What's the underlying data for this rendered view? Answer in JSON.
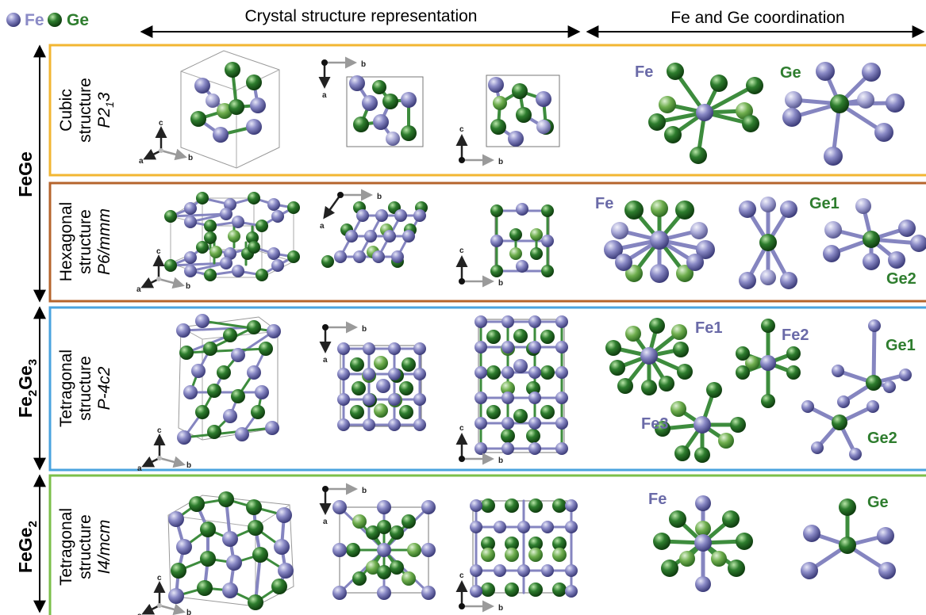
{
  "legend": {
    "fe": {
      "label": "Fe",
      "color": "#8a8ac6"
    },
    "ge": {
      "label": "Ge",
      "color": "#2e7d2e"
    }
  },
  "headers": {
    "crystal": "Crystal structure representation",
    "coordination": "Fe and Ge coordination"
  },
  "compounds": {
    "fege": {
      "formula": "FeGe"
    },
    "fe2ge3": {
      "base_fe": "Fe",
      "sub_fe": "2",
      "base_ge": "Ge",
      "sub_ge": "3"
    },
    "fege2": {
      "base": "FeGe",
      "sub": "2"
    }
  },
  "colors": {
    "cubic_border": "#f2b632",
    "hexagonal_border": "#b5642c",
    "tetragonal1_border": "#4aa3df",
    "tetragonal2_border": "#7bbf4a",
    "fe_atom": "#8a8ac6",
    "ge_atom": "#2e7d2e",
    "ge_light": "#6fae4e",
    "bond_fe": "#8585c0",
    "bond_ge": "#3d8c3d"
  },
  "rows": [
    {
      "id": "cubic",
      "struct_line1": "Cubic",
      "struct_line2": "structure",
      "space_group": "P2",
      "space_group_sub": "1",
      "space_group_tail": "3",
      "axes": {
        "a": "a",
        "b": "b",
        "c": "c"
      },
      "coord_labels": [
        "Fe",
        "Ge"
      ]
    },
    {
      "id": "hexagonal",
      "struct_line1": "Hexagonal",
      "struct_line2": "structure",
      "space_group": "P6/mmm",
      "axes": {
        "a": "a",
        "b": "b",
        "c": "c"
      },
      "coord_labels": [
        "Fe",
        "Ge1",
        "Ge2"
      ]
    },
    {
      "id": "tetragonal1",
      "struct_line1": "Tetragonal",
      "struct_line2": "structure",
      "space_group": "P-4c2",
      "axes": {
        "a": "a",
        "b": "b",
        "c": "c"
      },
      "coord_labels": [
        "Fe1",
        "Fe2",
        "Ge1",
        "Fe3",
        "Ge2"
      ]
    },
    {
      "id": "tetragonal2",
      "struct_line1": "Tetragonal",
      "struct_line2": "structure",
      "space_group": "I4/mcm",
      "axes": {
        "a": "a",
        "b": "b",
        "c": "c"
      },
      "coord_labels": [
        "Fe",
        "Ge"
      ]
    }
  ]
}
